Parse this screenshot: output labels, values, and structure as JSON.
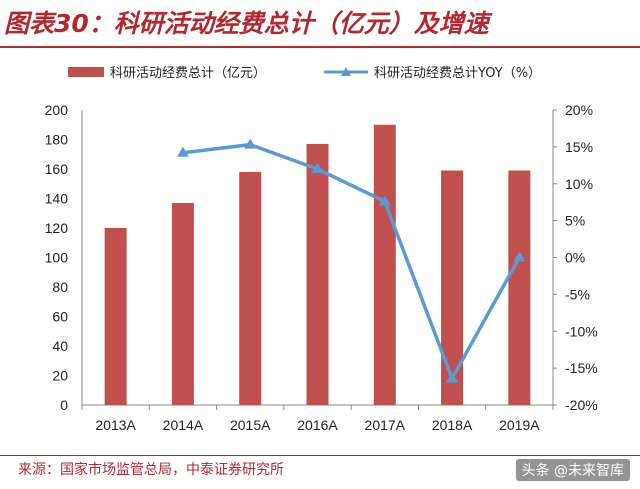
{
  "header": {
    "title": "图表30：科研活动经费总计（亿元）及增速"
  },
  "footer": {
    "source": "来源：国家市场监管总局，中泰证券研究所",
    "watermark": "头条 @未来智库"
  },
  "colors": {
    "bar": "#c0504d",
    "line": "#5b9bd5",
    "title": "#b3282d"
  },
  "chart_data": {
    "type": "bar",
    "categories": [
      "2013A",
      "2014A",
      "2015A",
      "2016A",
      "2017A",
      "2018A",
      "2019A"
    ],
    "series": [
      {
        "name": "科研活动经费总计（亿元）",
        "type": "bar",
        "axis": "left",
        "values": [
          120,
          137,
          158,
          177,
          190,
          159,
          159
        ]
      },
      {
        "name": "科研活动经费总计YOY（%）",
        "type": "line",
        "axis": "right",
        "values": [
          null,
          14.2,
          15.3,
          12.0,
          7.6,
          -16.4,
          0.0
        ]
      }
    ],
    "y_left": {
      "min": 0,
      "max": 200,
      "ticks": [
        "0",
        "20",
        "40",
        "60",
        "80",
        "100",
        "120",
        "140",
        "160",
        "180",
        "200"
      ]
    },
    "y_right": {
      "min": -20,
      "max": 20,
      "ticks": [
        "-20%",
        "-15%",
        "-10%",
        "-5%",
        "0%",
        "5%",
        "10%",
        "15%",
        "20%"
      ]
    },
    "legend_position": "top"
  }
}
